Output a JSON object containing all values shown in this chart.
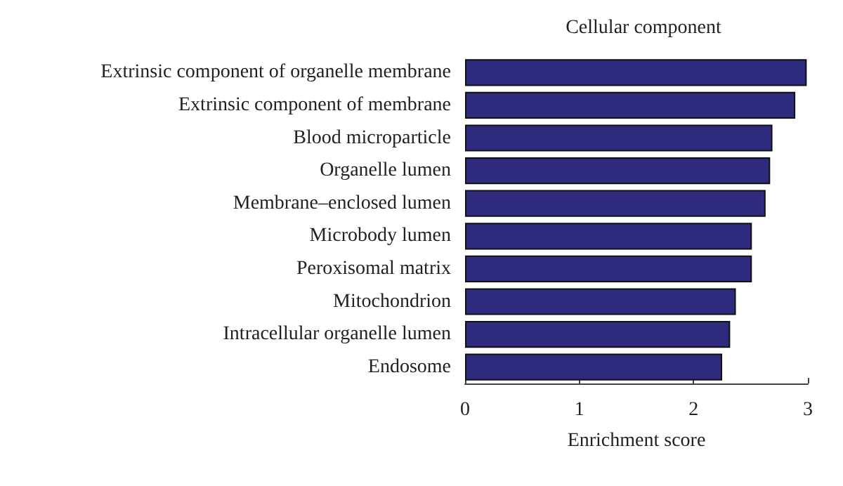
{
  "chart_data": {
    "type": "bar",
    "orientation": "horizontal",
    "title": "Cellular component",
    "xlabel": "Enrichment score",
    "categories": [
      "Extrinsic component of organelle membrane",
      "Extrinsic component of membrane",
      "Blood microparticle",
      "Organelle lumen",
      "Membrane–enclosed lumen",
      "Microbody lumen",
      "Peroxisomal matrix",
      "Mitochondrion",
      "Intracellular organelle lumen",
      "Endosome"
    ],
    "values": [
      2.99,
      2.89,
      2.69,
      2.67,
      2.63,
      2.51,
      2.51,
      2.37,
      2.32,
      2.25
    ],
    "color": "#2e2a7e",
    "xlim": [
      0,
      3
    ],
    "xticks": [
      0,
      1,
      2,
      3
    ],
    "grid": false
  }
}
